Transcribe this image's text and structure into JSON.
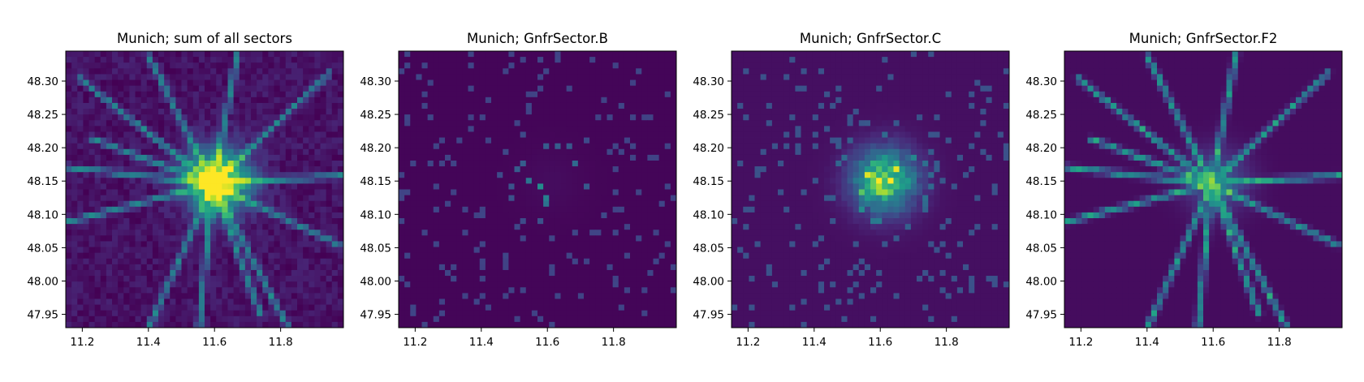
{
  "chart_data": [
    {
      "type": "heatmap",
      "title": "Munich; sum of all sectors",
      "xlabel": "",
      "ylabel": "",
      "xlim": [
        11.15,
        11.99
      ],
      "ylim": [
        47.93,
        48.345
      ],
      "xticks": [
        "11.2",
        "11.4",
        "11.6",
        "11.8"
      ],
      "yticks": [
        "48.30",
        "48.25",
        "48.20",
        "48.15",
        "48.10",
        "48.05",
        "48.00",
        "47.95"
      ],
      "colormap": "viridis",
      "grid": false,
      "key": "all"
    },
    {
      "type": "heatmap",
      "title": "Munich; GnfrSector.B",
      "xlabel": "",
      "ylabel": "",
      "xlim": [
        11.15,
        11.99
      ],
      "ylim": [
        47.93,
        48.345
      ],
      "xticks": [
        "11.2",
        "11.4",
        "11.6",
        "11.8"
      ],
      "yticks": [
        "48.30",
        "48.25",
        "48.20",
        "48.15",
        "48.10",
        "48.05",
        "48.00",
        "47.95"
      ],
      "colormap": "viridis",
      "grid": false,
      "key": "B"
    },
    {
      "type": "heatmap",
      "title": "Munich; GnfrSector.C",
      "xlabel": "",
      "ylabel": "",
      "xlim": [
        11.15,
        11.99
      ],
      "ylim": [
        47.93,
        48.345
      ],
      "xticks": [
        "11.2",
        "11.4",
        "11.6",
        "11.8"
      ],
      "yticks": [
        "48.30",
        "48.25",
        "48.20",
        "48.15",
        "48.10",
        "48.05",
        "48.00",
        "47.95"
      ],
      "colormap": "viridis",
      "grid": false,
      "key": "C"
    },
    {
      "type": "heatmap",
      "title": "Munich; GnfrSector.F2",
      "xlabel": "",
      "ylabel": "",
      "xlim": [
        11.15,
        11.99
      ],
      "ylim": [
        47.93,
        48.345
      ],
      "xticks": [
        "11.2",
        "11.4",
        "11.6",
        "11.8"
      ],
      "yticks": [
        "48.30",
        "48.25",
        "48.20",
        "48.15",
        "48.10",
        "48.05",
        "48.00",
        "47.95"
      ],
      "colormap": "viridis",
      "grid": false,
      "key": "F2"
    }
  ]
}
